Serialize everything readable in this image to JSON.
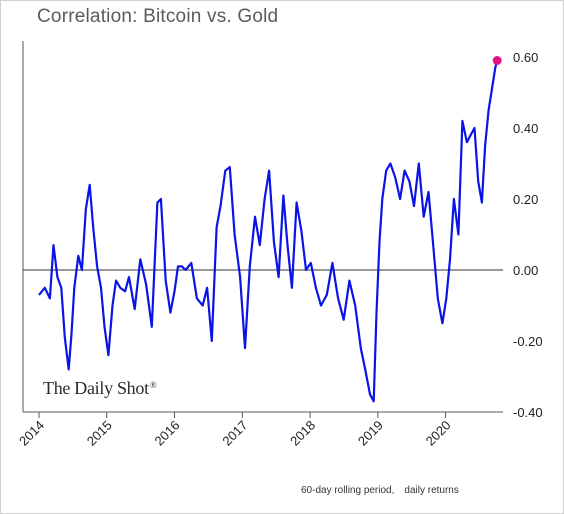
{
  "chart_data": {
    "type": "line",
    "title": "Correlation: Bitcoin vs. Gold",
    "xlabel": "",
    "ylabel": "",
    "x_ticks": [
      "2014",
      "2015",
      "2016",
      "2017",
      "2018",
      "2019",
      "2020"
    ],
    "y_ticks": [
      "0.60",
      "0.40",
      "0.20",
      "0.00",
      "-0.20",
      "-0.40"
    ],
    "ylim": [
      -0.4,
      0.6
    ],
    "xlim": [
      "2014-01-01",
      "2020-10-15"
    ],
    "grid": false,
    "reference_line_y": 0,
    "series": [
      {
        "color": "#0a14e6",
        "x": [
          "2014-01-01",
          "2014-02-01",
          "2014-03-01",
          "2014-03-20",
          "2014-04-10",
          "2014-05-01",
          "2014-05-20",
          "2014-06-10",
          "2014-06-25",
          "2014-07-10",
          "2014-08-01",
          "2014-08-20",
          "2014-09-10",
          "2014-10-01",
          "2014-10-20",
          "2014-11-10",
          "2014-12-01",
          "2014-12-20",
          "2015-01-10",
          "2015-02-01",
          "2015-02-20",
          "2015-03-15",
          "2015-04-10",
          "2015-05-01",
          "2015-06-01",
          "2015-07-01",
          "2015-08-01",
          "2015-09-01",
          "2015-10-01",
          "2015-10-20",
          "2015-11-15",
          "2015-12-10",
          "2016-01-01",
          "2016-01-20",
          "2016-02-10",
          "2016-03-01",
          "2016-04-01",
          "2016-05-01",
          "2016-06-01",
          "2016-06-25",
          "2016-07-20",
          "2016-08-15",
          "2016-09-05",
          "2016-10-01",
          "2016-10-25",
          "2016-11-20",
          "2016-12-20",
          "2017-01-15",
          "2017-02-10",
          "2017-03-10",
          "2017-04-05",
          "2017-05-01",
          "2017-05-25",
          "2017-06-20",
          "2017-07-15",
          "2017-08-10",
          "2017-09-01",
          "2017-09-25",
          "2017-10-20",
          "2017-11-15",
          "2017-12-10",
          "2018-01-05",
          "2018-02-01",
          "2018-03-01",
          "2018-04-01",
          "2018-05-01",
          "2018-06-01",
          "2018-07-01",
          "2018-08-01",
          "2018-09-01",
          "2018-10-01",
          "2018-10-25",
          "2018-11-20",
          "2018-12-10",
          "2018-12-25",
          "2019-01-10",
          "2019-01-25",
          "2019-02-15",
          "2019-03-10",
          "2019-04-05",
          "2019-05-01",
          "2019-05-25",
          "2019-06-20",
          "2019-07-15",
          "2019-08-10",
          "2019-09-05",
          "2019-10-01",
          "2019-10-25",
          "2019-11-20",
          "2019-12-15",
          "2020-01-05",
          "2020-01-25",
          "2020-02-15",
          "2020-03-10",
          "2020-04-01",
          "2020-04-25",
          "2020-05-15",
          "2020-06-05",
          "2020-06-25",
          "2020-07-15",
          "2020-08-01",
          "2020-08-20",
          "2020-09-10",
          "2020-09-25",
          "2020-10-05"
        ],
        "y": [
          -0.07,
          -0.05,
          -0.08,
          0.07,
          -0.02,
          -0.05,
          -0.19,
          -0.28,
          -0.18,
          -0.05,
          0.04,
          0.0,
          0.17,
          0.24,
          0.12,
          0.01,
          -0.05,
          -0.16,
          -0.24,
          -0.1,
          -0.03,
          -0.05,
          -0.06,
          -0.02,
          -0.11,
          0.03,
          -0.04,
          -0.16,
          0.19,
          0.2,
          -0.03,
          -0.12,
          -0.06,
          0.01,
          0.01,
          0.0,
          0.02,
          -0.08,
          -0.1,
          -0.05,
          -0.2,
          0.12,
          0.18,
          0.28,
          0.29,
          0.1,
          -0.02,
          -0.22,
          0.01,
          0.15,
          0.07,
          0.2,
          0.28,
          0.08,
          -0.02,
          0.21,
          0.07,
          -0.05,
          0.19,
          0.11,
          0.0,
          0.02,
          -0.05,
          -0.1,
          -0.07,
          0.02,
          -0.08,
          -0.14,
          -0.03,
          -0.1,
          -0.22,
          -0.28,
          -0.35,
          -0.37,
          -0.12,
          0.08,
          0.2,
          0.28,
          0.3,
          0.26,
          0.2,
          0.28,
          0.25,
          0.18,
          0.3,
          0.15,
          0.22,
          0.08,
          -0.08,
          -0.15,
          -0.08,
          0.03,
          0.2,
          0.1,
          0.42,
          0.36,
          0.38,
          0.4,
          0.25,
          0.19,
          0.35,
          0.45,
          0.52,
          0.57,
          0.59
        ]
      }
    ],
    "end_marker": {
      "x": "2020-10-05",
      "y": 0.59,
      "color": "#e0158a"
    }
  },
  "footnote": {
    "period": "60-day rolling period,",
    "returns": "daily returns"
  },
  "watermark": "The Daily Shot"
}
